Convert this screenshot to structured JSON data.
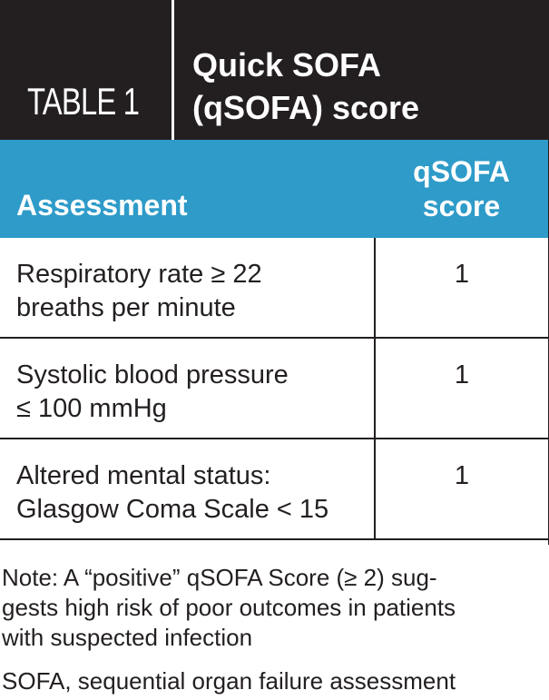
{
  "header": {
    "label": "TABLE 1",
    "title_line1": "Quick SOFA",
    "title_line2": "(qSOFA) score"
  },
  "columns": {
    "assessment": "Assessment",
    "score_line1": "qSOFA",
    "score_line2": "score"
  },
  "rows": [
    {
      "assessment_line1": "Respiratory rate ≥ 22",
      "assessment_line2": "breaths per minute",
      "score": "1"
    },
    {
      "assessment_line1": "Systolic blood pressure",
      "assessment_line2": "≤ 100 mmHg",
      "score": "1"
    },
    {
      "assessment_line1": "Altered mental status:",
      "assessment_line2": "Glasgow Coma Scale < 15",
      "score": "1"
    }
  ],
  "note": {
    "line1": "Note:  A “positive” qSOFA Score (≥ 2) sug-",
    "line2": "gests high risk of poor outcomes in patients",
    "line3": "with suspected infection"
  },
  "abbreviation": "SOFA, sequential organ failure assessment",
  "colors": {
    "header_bg": "#231f20",
    "column_header_bg": "#2e9bc9",
    "text": "#231f20"
  }
}
